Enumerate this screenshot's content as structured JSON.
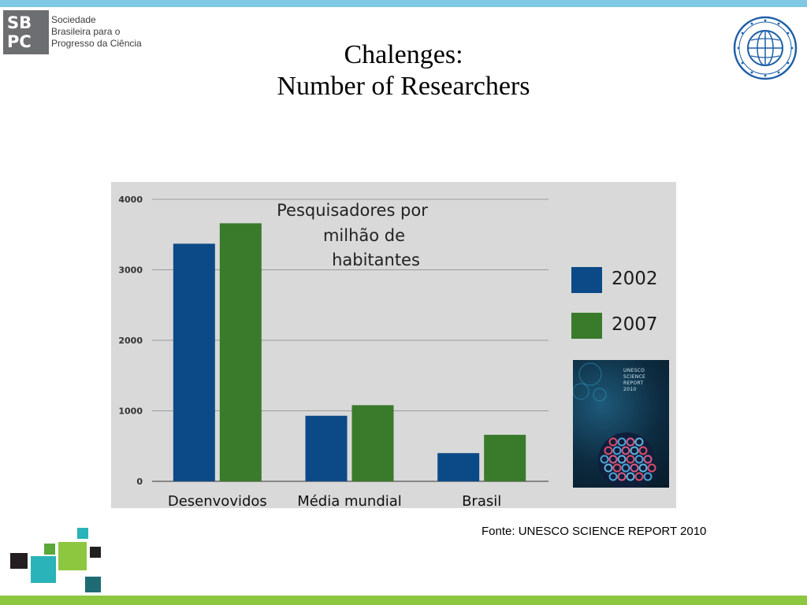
{
  "header": {
    "sbpc_mark_letters": [
      "SB",
      "PC"
    ],
    "sbpc_name_lines": [
      "Sociedade",
      "Brasileira para o",
      "Progresso da Ciência"
    ],
    "title_lines": [
      "Chalenges:",
      "Number of Researchers"
    ]
  },
  "colors": {
    "top_bar": "#7ec8e3",
    "bottom_bar": "#8dc63f",
    "series_2002": "#0c4a87",
    "series_2007": "#3a7a2b",
    "chart_background": "#d9d9d9"
  },
  "chart_data": {
    "type": "bar",
    "title_lines": [
      "Pesquisadores por",
      "milhão de",
      "habitantes"
    ],
    "categories": [
      "Desenvovidos",
      "Média mundial",
      "Brasil"
    ],
    "series": [
      {
        "name": "2002",
        "values": [
          3370,
          930,
          400
        ]
      },
      {
        "name": "2007",
        "values": [
          3660,
          1080,
          660
        ]
      }
    ],
    "ylim": [
      0,
      4000
    ],
    "yticks": [
      0,
      1000,
      2000,
      3000,
      4000
    ],
    "grid": true,
    "legend_placement": "right"
  },
  "cover": {
    "lines": [
      "UNESCO",
      "SCIENCE",
      "REPORT",
      "2010"
    ]
  },
  "source_note": "Fonte: UNESCO SCIENCE REPORT 2010",
  "icons": {
    "emblem": "cast-emblem-icon",
    "squares": "squares-logo-icon"
  }
}
